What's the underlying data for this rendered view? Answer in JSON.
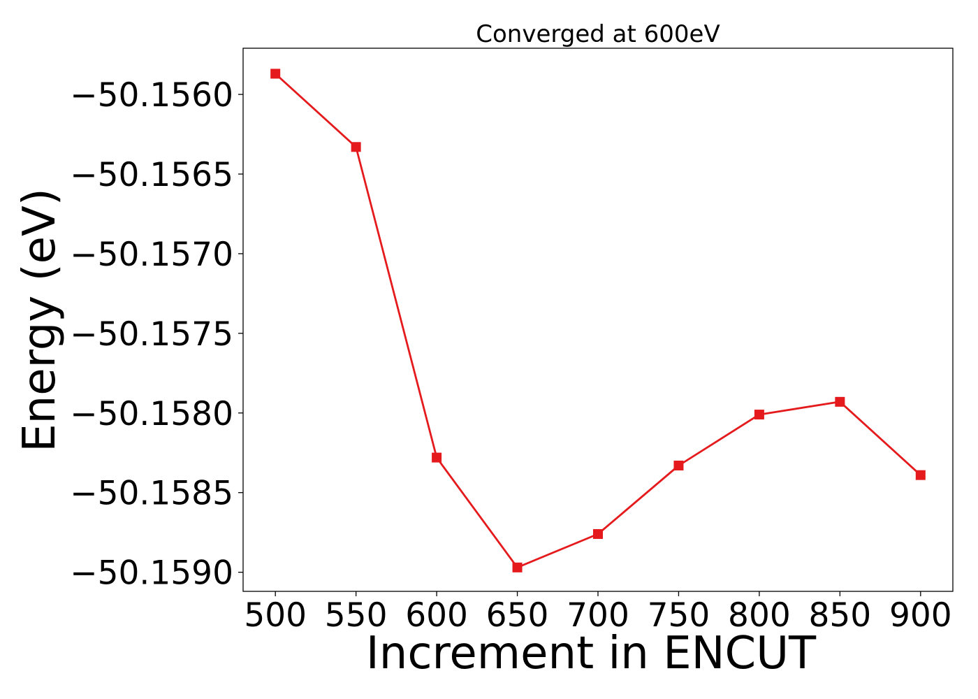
{
  "chart_data": {
    "type": "line",
    "title": "Converged at 600eV",
    "xlabel": "Increment in ENCUT",
    "ylabel": "Energy (eV)",
    "xlim": [
      480,
      920
    ],
    "ylim": [
      -50.15912,
      -50.15571
    ],
    "xticks": [
      500,
      550,
      600,
      650,
      700,
      750,
      800,
      850,
      900
    ],
    "xtick_labels": [
      "500",
      "550",
      "600",
      "650",
      "700",
      "750",
      "800",
      "850",
      "900"
    ],
    "yticks": [
      -50.156,
      -50.1565,
      -50.157,
      -50.1575,
      -50.158,
      -50.1585,
      -50.159
    ],
    "ytick_labels": [
      "−50.1560",
      "−50.1565",
      "−50.1570",
      "−50.1575",
      "−50.1580",
      "−50.1585",
      "−50.1590"
    ],
    "grid": false,
    "series": [
      {
        "color": "#e41a1c",
        "marker": "square",
        "x": [
          500,
          550,
          600,
          650,
          700,
          750,
          800,
          850,
          900
        ],
        "y": [
          -50.15587,
          -50.15633,
          -50.15828,
          -50.15897,
          -50.15876,
          -50.15833,
          -50.15801,
          -50.15793,
          -50.15839
        ]
      }
    ]
  }
}
